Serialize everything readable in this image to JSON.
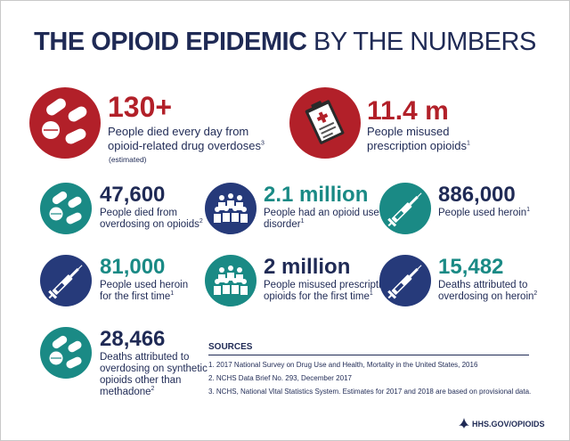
{
  "title": {
    "bold": "THE OPIOID EPIDEMIC",
    "light": "BY THE NUMBERS"
  },
  "stats": [
    {
      "id": "deaths-per-day",
      "number": "130+",
      "desc_lines": [
        "People died every day from",
        "opioid-related drug overdoses"
      ],
      "sup": "3",
      "note": "(estimated)",
      "icon": "pills-icon",
      "color": "#b22029"
    },
    {
      "id": "misused-prescription",
      "number": "11.4 m",
      "desc_lines": [
        "People misused",
        "prescription opioids"
      ],
      "sup": "1",
      "icon": "prescription-clipboard-icon",
      "color": "#b22029"
    },
    {
      "id": "died-overdosing",
      "number": "47,600",
      "desc_lines": [
        "People died from",
        "overdosing on opioids"
      ],
      "sup": "2",
      "icon": "pills-icon",
      "color": "#1a8a85"
    },
    {
      "id": "use-disorder",
      "number": "2.1 million",
      "desc_lines": [
        "People had an opioid use",
        "disorder"
      ],
      "sup": "1",
      "icon": "people-group-icon",
      "color": "#263a7a"
    },
    {
      "id": "used-heroin",
      "number": "886,000",
      "desc_lines": [
        "People used heroin"
      ],
      "sup": "1",
      "icon": "syringe-icon",
      "color": "#1a8a85"
    },
    {
      "id": "heroin-first-time",
      "number": "81,000",
      "desc_lines": [
        "People used heroin",
        "for the first time"
      ],
      "sup": "1",
      "icon": "syringe-icon",
      "color": "#263a7a"
    },
    {
      "id": "misused-first-time",
      "number": "2 million",
      "desc_lines": [
        "People misused prescription",
        "opioids for the first time"
      ],
      "sup": "1",
      "icon": "people-group-icon",
      "color": "#1a8a85"
    },
    {
      "id": "heroin-deaths",
      "number": "15,482",
      "desc_lines": [
        "Deaths attributed to",
        "overdosing on heroin"
      ],
      "sup": "2",
      "icon": "syringe-icon",
      "color": "#263a7a"
    },
    {
      "id": "synthetic-deaths",
      "number": "28,466",
      "desc_lines": [
        "Deaths attributed to",
        "overdosing on synthetic",
        "opioids other than",
        "methadone"
      ],
      "sup": "2",
      "icon": "pills-icon",
      "color": "#1a8a85"
    }
  ],
  "sources": {
    "heading": "SOURCES",
    "items": [
      "1.  2017 National Survey on Drug Use and Health, Mortality in the United States, 2016",
      "2.  NCHS Data Brief No. 293, December 2017",
      "3.  NCHS, National Vital Statistics System. Estimates for 2017 and 2018 are based on provisional data."
    ]
  },
  "footer": {
    "text": "HHS.GOV/OPIOIDS"
  }
}
